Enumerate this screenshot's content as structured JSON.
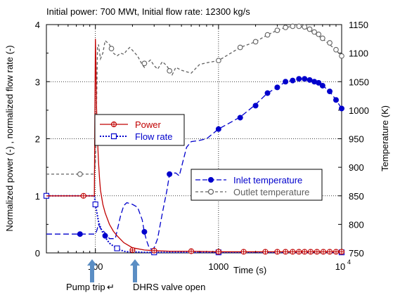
{
  "chart_data": {
    "type": "line",
    "title": "Initial power: 700 MWt, Initial flow rate: 12300 kg/s",
    "xlabel": "Time (s)",
    "ylabel_left": "Normalized power (-) , normalized flow rate (-)",
    "ylabel_right": "Temperature (K)",
    "x_scale": "log",
    "xlim": [
      40,
      10000
    ],
    "ylim_left": [
      0,
      4
    ],
    "ylim_right": [
      750,
      1150
    ],
    "x_tick_labels": [
      "100",
      "1000",
      "10"
    ],
    "x_tick_exponent": "4",
    "y_left_ticks": [
      0,
      1,
      2,
      3,
      4
    ],
    "y_right_ticks": [
      750,
      800,
      850,
      900,
      950,
      1000,
      1050,
      1100,
      1150
    ],
    "grid": "dotted",
    "series": [
      {
        "name": "Power",
        "axis": "left",
        "color": "#c00000",
        "dash": "solid",
        "marker": "open-circle-plus",
        "x": [
          40,
          80,
          98,
          100,
          101,
          102,
          104,
          106,
          108,
          110,
          115,
          120,
          130,
          140,
          150,
          170,
          200,
          250,
          300,
          400,
          600,
          1000,
          2000,
          5000,
          10000
        ],
        "y": [
          1.0,
          1.0,
          1.0,
          3.75,
          3.3,
          2.6,
          2.0,
          1.6,
          1.3,
          1.1,
          0.85,
          0.7,
          0.5,
          0.38,
          0.3,
          0.18,
          0.09,
          0.05,
          0.04,
          0.03,
          0.03,
          0.02,
          0.02,
          0.02,
          0.02
        ],
        "markers_x": [
          80,
          200,
          300,
          600,
          1000,
          1600,
          2400,
          3000,
          3500,
          4000,
          4500,
          5000,
          5600,
          6300,
          7100,
          8000,
          9000,
          10000
        ],
        "markers_y": [
          1.0,
          0.05,
          0.04,
          0.03,
          0.02,
          0.02,
          0.02,
          0.02,
          0.02,
          0.02,
          0.02,
          0.02,
          0.02,
          0.02,
          0.02,
          0.02,
          0.02,
          0.02
        ]
      },
      {
        "name": "Flow rate",
        "axis": "left",
        "color": "#0000cc",
        "dash": "dotted",
        "marker": "open-square",
        "x": [
          40,
          98,
          100,
          103,
          106,
          110,
          115,
          120,
          125,
          130,
          140,
          150,
          160,
          170,
          180,
          200,
          250,
          300,
          500,
          1000,
          2000,
          5000,
          10000
        ],
        "y": [
          1.0,
          1.0,
          0.85,
          0.7,
          0.55,
          0.45,
          0.35,
          0.28,
          0.22,
          0.17,
          0.12,
          0.08,
          0.05,
          0.03,
          0.02,
          0.02,
          0.01,
          0.01,
          0.01,
          0.01,
          0.01,
          0.01,
          0.01
        ],
        "markers_x": [
          40,
          100,
          150,
          300,
          1000,
          10000
        ],
        "markers_y": [
          1.0,
          0.85,
          0.08,
          0.01,
          0.01,
          0.01
        ]
      },
      {
        "name": "Inlet temperature",
        "axis": "right",
        "color": "#0000cc",
        "dash": "long-dash",
        "marker": "filled-circle",
        "x": [
          40,
          100,
          103,
          106,
          110,
          120,
          130,
          145,
          160,
          170,
          180,
          200,
          220,
          240,
          250,
          260,
          270,
          280,
          290,
          300,
          320,
          350,
          380,
          400,
          420,
          450,
          480,
          500,
          550,
          600,
          700,
          800,
          1000,
          1500,
          2000,
          2500,
          3000,
          3500,
          4000,
          4500,
          5000,
          5500,
          6000,
          6500,
          7000,
          8000,
          9000,
          10000
        ],
        "y": [
          783,
          783,
          790,
          800,
          793,
          785,
          775,
          775,
          815,
          833,
          838,
          835,
          830,
          808,
          786,
          772,
          762,
          757,
          757,
          759,
          775,
          820,
          858,
          888,
          890,
          890,
          885,
          900,
          935,
          945,
          947,
          950,
          967,
          988,
          1010,
          1030,
          1040,
          1050,
          1052,
          1055,
          1055,
          1053,
          1050,
          1048,
          1043,
          1033,
          1018,
          1003
        ],
        "markers_x": [
          75,
          120,
          250,
          400,
          1000,
          1500,
          2000,
          2500,
          3000,
          3500,
          4000,
          4500,
          5000,
          5500,
          6000,
          6500,
          7000,
          8000,
          9000,
          10000
        ],
        "markers_y": [
          783,
          780,
          787,
          888,
          967,
          987,
          1008,
          1030,
          1040,
          1050,
          1052,
          1055,
          1055,
          1053,
          1050,
          1048,
          1043,
          1033,
          1018,
          1003
        ]
      },
      {
        "name": "Outlet temperature",
        "axis": "right",
        "color": "#606060",
        "dash": "dashed",
        "marker": "open-circle",
        "x": [
          40,
          95,
          98,
          100,
          102,
          104,
          106,
          110,
          115,
          120,
          130,
          140,
          150,
          160,
          170,
          180,
          190,
          200,
          220,
          240,
          250,
          260,
          280,
          300,
          320,
          350,
          380,
          400,
          420,
          450,
          500,
          600,
          700,
          800,
          1000,
          1500,
          2000,
          2500,
          3000,
          3500,
          4000,
          4500,
          5000,
          6000,
          7000,
          8000,
          9000,
          10000
        ],
        "y": [
          888,
          888,
          888,
          910,
          1000,
          1110,
          1115,
          1090,
          1100,
          1122,
          1115,
          1100,
          1095,
          1100,
          1098,
          1105,
          1110,
          1105,
          1095,
          1080,
          1075,
          1082,
          1088,
          1078,
          1072,
          1085,
          1078,
          1070,
          1062,
          1075,
          1070,
          1065,
          1080,
          1083,
          1087,
          1110,
          1120,
          1132,
          1140,
          1145,
          1147,
          1147,
          1145,
          1135,
          1125,
          1115,
          1105,
          1095
        ],
        "markers_x": [
          75,
          135,
          250,
          400,
          1000,
          1500,
          2000,
          2500,
          3000,
          3500,
          4000,
          4500,
          5000,
          5500,
          6000,
          6500,
          7000,
          8000,
          9000,
          10000
        ],
        "markers_y": [
          888,
          1108,
          1082,
          1069,
          1087,
          1110,
          1120,
          1132,
          1140,
          1145,
          1147,
          1147,
          1146,
          1142,
          1137,
          1133,
          1126,
          1118,
          1106,
          1095
        ]
      }
    ],
    "legends": [
      {
        "position": "center-left",
        "entries": [
          "Power",
          "Flow rate"
        ]
      },
      {
        "position": "lower-right",
        "entries": [
          "Inlet temperature",
          "Outlet temperature"
        ]
      }
    ],
    "annotations": [
      {
        "text": "Pump trip",
        "symbol": "↵",
        "arrow_color": "#5b8ec4",
        "at_x": 100
      },
      {
        "text": "DHRS valve open",
        "arrow_color": "#5b8ec4",
        "at_x": 250
      }
    ]
  }
}
